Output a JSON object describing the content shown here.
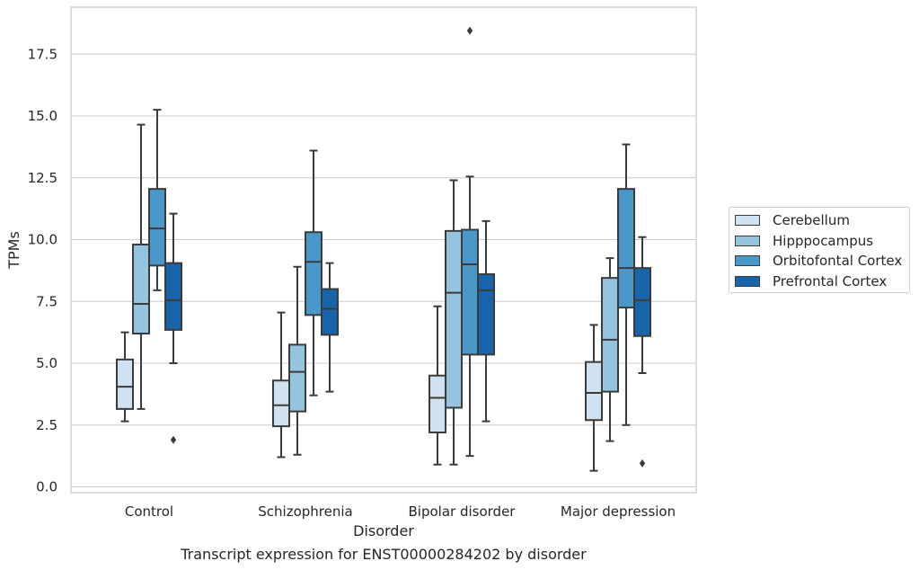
{
  "chart_data": {
    "type": "box",
    "title": "",
    "caption": "Transcript expression for ENST00000284202 by disorder",
    "xlabel": "Disorder",
    "ylabel": "TPMs",
    "ylim": [
      -0.15,
      19.3
    ],
    "yticks": [
      "0.0",
      "2.5",
      "5.0",
      "7.5",
      "10.0",
      "12.5",
      "15.0",
      "17.5"
    ],
    "grid": "y",
    "legend_position": "right",
    "categories": [
      "Control",
      "Schizophrenia",
      "Bipolar disorder",
      "Major depression"
    ],
    "series": [
      {
        "name": "Cerebellum",
        "color": "#d0e1f2",
        "boxes": [
          {
            "whislo": 2.65,
            "q1": 3.15,
            "med": 4.05,
            "q3": 5.15,
            "whishi": 6.25,
            "fliers": []
          },
          {
            "whislo": 1.2,
            "q1": 2.45,
            "med": 3.3,
            "q3": 4.3,
            "whishi": 7.05,
            "fliers": []
          },
          {
            "whislo": 0.9,
            "q1": 2.2,
            "med": 3.6,
            "q3": 4.5,
            "whishi": 7.3,
            "fliers": []
          },
          {
            "whislo": 0.65,
            "q1": 2.7,
            "med": 3.8,
            "q3": 5.05,
            "whishi": 6.55,
            "fliers": []
          }
        ]
      },
      {
        "name": "Hipppocampus",
        "color": "#94c4df",
        "boxes": [
          {
            "whislo": 3.15,
            "q1": 6.2,
            "med": 7.4,
            "q3": 9.8,
            "whishi": 14.65,
            "fliers": []
          },
          {
            "whislo": 1.3,
            "q1": 3.05,
            "med": 4.65,
            "q3": 5.75,
            "whishi": 8.9,
            "fliers": []
          },
          {
            "whislo": 0.9,
            "q1": 3.2,
            "med": 7.85,
            "q3": 10.35,
            "whishi": 12.4,
            "fliers": []
          },
          {
            "whislo": 1.85,
            "q1": 3.85,
            "med": 5.95,
            "q3": 8.45,
            "whishi": 9.25,
            "fliers": []
          }
        ]
      },
      {
        "name": "Orbitofontal Cortex",
        "color": "#4a98c9",
        "boxes": [
          {
            "whislo": 7.95,
            "q1": 8.95,
            "med": 10.45,
            "q3": 12.05,
            "whishi": 15.25,
            "fliers": []
          },
          {
            "whislo": 3.7,
            "q1": 6.95,
            "med": 9.1,
            "q3": 10.3,
            "whishi": 13.6,
            "fliers": []
          },
          {
            "whislo": 1.25,
            "q1": 5.35,
            "med": 9.0,
            "q3": 10.4,
            "whishi": 12.55,
            "fliers": [
              18.45
            ]
          },
          {
            "whislo": 2.5,
            "q1": 7.25,
            "med": 8.85,
            "q3": 12.05,
            "whishi": 13.85,
            "fliers": []
          }
        ]
      },
      {
        "name": "Prefrontal Cortex",
        "color": "#1764ab",
        "boxes": [
          {
            "whislo": 5.0,
            "q1": 6.35,
            "med": 7.55,
            "q3": 9.05,
            "whishi": 11.05,
            "fliers": [
              1.9
            ]
          },
          {
            "whislo": 3.85,
            "q1": 6.15,
            "med": 7.2,
            "q3": 8.0,
            "whishi": 9.05,
            "fliers": []
          },
          {
            "whislo": 2.65,
            "q1": 5.35,
            "med": 7.95,
            "q3": 8.6,
            "whishi": 10.75,
            "fliers": []
          },
          {
            "whislo": 4.6,
            "q1": 6.1,
            "med": 7.55,
            "q3": 8.85,
            "whishi": 10.1,
            "fliers": [
              0.95
            ]
          }
        ]
      }
    ]
  }
}
